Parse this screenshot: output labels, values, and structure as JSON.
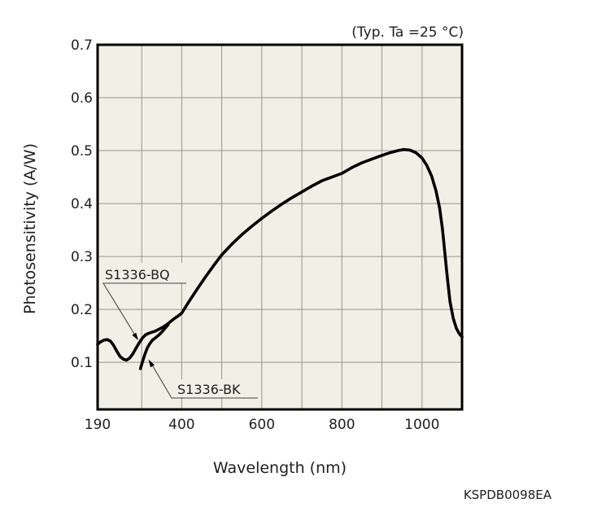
{
  "chart": {
    "condition_label": "(Typ. Ta =25 °C)",
    "doc_number": "KSPDB0098EA",
    "colors": {
      "plot_bg": "#f1f0e7",
      "grid": "#96968c",
      "axis": "#000000",
      "curve": "#000000",
      "leader": "#45453f",
      "text": "#1e1e1e"
    }
  },
  "chart_data": {
    "type": "line",
    "title": "",
    "xlabel": "Wavelength (nm)",
    "ylabel": "Photosensitivity (A/W)",
    "xlim": [
      190,
      1100
    ],
    "ylim": [
      0.011,
      0.7
    ],
    "grid": true,
    "legend_position": "callouts-inside-plot",
    "x_ticks": [
      {
        "value": 190,
        "label": "190"
      },
      {
        "value": 400,
        "label": "400"
      },
      {
        "value": 600,
        "label": "600"
      },
      {
        "value": 800,
        "label": "800"
      },
      {
        "value": 1000,
        "label": "1000"
      }
    ],
    "y_ticks": [
      {
        "value": 0.1,
        "label": "0.1"
      },
      {
        "value": 0.2,
        "label": "0.2"
      },
      {
        "value": 0.3,
        "label": "0.3"
      },
      {
        "value": 0.4,
        "label": "0.4"
      },
      {
        "value": 0.5,
        "label": "0.5"
      },
      {
        "value": 0.6,
        "label": "0.6"
      },
      {
        "value": 0.7,
        "label": "0.7"
      }
    ],
    "x_gridlines": [
      300,
      400,
      500,
      600,
      700,
      800,
      900,
      1000
    ],
    "y_gridlines": [
      0.1,
      0.2,
      0.3,
      0.4,
      0.5,
      0.6
    ],
    "series": [
      {
        "name": "S1336-BQ",
        "points": [
          [
            190,
            0.134
          ],
          [
            198,
            0.139
          ],
          [
            206,
            0.142
          ],
          [
            214,
            0.143
          ],
          [
            222,
            0.14
          ],
          [
            230,
            0.132
          ],
          [
            238,
            0.121
          ],
          [
            246,
            0.111
          ],
          [
            254,
            0.106
          ],
          [
            262,
            0.104
          ],
          [
            270,
            0.108
          ],
          [
            278,
            0.116
          ],
          [
            286,
            0.127
          ],
          [
            294,
            0.137
          ],
          [
            302,
            0.146
          ],
          [
            310,
            0.152
          ],
          [
            318,
            0.155
          ],
          [
            326,
            0.157
          ],
          [
            334,
            0.159
          ],
          [
            342,
            0.162
          ],
          [
            352,
            0.166
          ],
          [
            362,
            0.171
          ],
          [
            372,
            0.177
          ],
          [
            382,
            0.183
          ],
          [
            392,
            0.188
          ],
          [
            400,
            0.193
          ],
          [
            420,
            0.217
          ],
          [
            440,
            0.24
          ],
          [
            460,
            0.262
          ],
          [
            480,
            0.283
          ],
          [
            500,
            0.303
          ],
          [
            525,
            0.323
          ],
          [
            550,
            0.341
          ],
          [
            575,
            0.357
          ],
          [
            600,
            0.372
          ],
          [
            625,
            0.386
          ],
          [
            650,
            0.399
          ],
          [
            675,
            0.411
          ],
          [
            700,
            0.422
          ],
          [
            725,
            0.433
          ],
          [
            750,
            0.443
          ],
          [
            775,
            0.45
          ],
          [
            800,
            0.457
          ],
          [
            825,
            0.468
          ],
          [
            850,
            0.477
          ],
          [
            875,
            0.484
          ],
          [
            900,
            0.491
          ],
          [
            920,
            0.496
          ],
          [
            940,
            0.5
          ],
          [
            955,
            0.502
          ],
          [
            970,
            0.501
          ],
          [
            985,
            0.496
          ],
          [
            1000,
            0.486
          ],
          [
            1012,
            0.472
          ],
          [
            1024,
            0.452
          ],
          [
            1035,
            0.424
          ],
          [
            1044,
            0.392
          ],
          [
            1051,
            0.352
          ],
          [
            1057,
            0.308
          ],
          [
            1063,
            0.262
          ],
          [
            1070,
            0.215
          ],
          [
            1078,
            0.183
          ],
          [
            1086,
            0.164
          ],
          [
            1093,
            0.154
          ],
          [
            1100,
            0.148
          ]
        ]
      },
      {
        "name": "S1336-BK",
        "points": [
          [
            297,
            0.088
          ],
          [
            302,
            0.101
          ],
          [
            308,
            0.115
          ],
          [
            314,
            0.127
          ],
          [
            320,
            0.135
          ],
          [
            327,
            0.142
          ],
          [
            334,
            0.146
          ],
          [
            342,
            0.151
          ],
          [
            350,
            0.157
          ],
          [
            358,
            0.164
          ],
          [
            366,
            0.171
          ]
        ]
      }
    ]
  }
}
